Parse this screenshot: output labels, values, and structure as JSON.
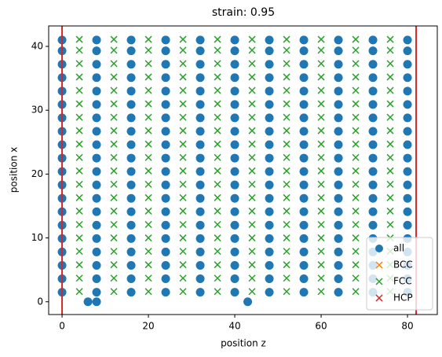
{
  "chart_data": {
    "type": "scatter",
    "title": "strain: 0.95",
    "xlabel": "position z",
    "ylabel": "position x",
    "xlim": [
      -3.1,
      86.9
    ],
    "ylim": [
      -2,
      43.2
    ],
    "xticks": [
      0,
      20,
      40,
      60,
      80
    ],
    "yticks": [
      0,
      10,
      20,
      30,
      40
    ],
    "vlines": [
      0,
      82
    ],
    "vline_color": "#d62728",
    "legend": "lower right",
    "series": [
      {
        "name": "all",
        "color": "#1f77b4",
        "marker": "o",
        "x": [
          0,
          8,
          16,
          24,
          32,
          40,
          48,
          56,
          64,
          72,
          80,
          0,
          8,
          16,
          24,
          32,
          40,
          48,
          56,
          64,
          72,
          80,
          0,
          8,
          16,
          24,
          32,
          40,
          48,
          56,
          64,
          72,
          80,
          0,
          8,
          16,
          24,
          32,
          40,
          48,
          56,
          64,
          72,
          80,
          0,
          8,
          16,
          24,
          32,
          40,
          48,
          56,
          64,
          72,
          80,
          0,
          8,
          16,
          24,
          32,
          40,
          48,
          56,
          64,
          72,
          80,
          0,
          8,
          16,
          24,
          32,
          40,
          48,
          56,
          64,
          72,
          80,
          0,
          8,
          16,
          24,
          32,
          40,
          48,
          56,
          64,
          72,
          80,
          0,
          8,
          16,
          24,
          32,
          40,
          48,
          56,
          64,
          72,
          80,
          0,
          8,
          16,
          24,
          32,
          40,
          48,
          56,
          64,
          72,
          80,
          0,
          8,
          16,
          24,
          32,
          40,
          48,
          56,
          64,
          72,
          80,
          0,
          8,
          16,
          24,
          32,
          40,
          48,
          56,
          64,
          72,
          80,
          0,
          8,
          16,
          24,
          32,
          40,
          48,
          56,
          64,
          72,
          80,
          0,
          8,
          16,
          24,
          32,
          40,
          48,
          56,
          64,
          72,
          80,
          0,
          8,
          16,
          24,
          32,
          40,
          48,
          56,
          64,
          72,
          80,
          0,
          8,
          16,
          24,
          32,
          40,
          48,
          56,
          64,
          72,
          80,
          0,
          8,
          16,
          24,
          32,
          40,
          48,
          56,
          64,
          72,
          80,
          0,
          8,
          16,
          24,
          32,
          40,
          48,
          56,
          64,
          72,
          80,
          0,
          8,
          16,
          24,
          32,
          40,
          48,
          56,
          64,
          72,
          80,
          0,
          8,
          16,
          24,
          32,
          40,
          48,
          56,
          64,
          72,
          80,
          6,
          8,
          43
        ],
        "y": [
          1.5,
          1.5,
          1.5,
          1.5,
          1.5,
          1.5,
          1.5,
          1.5,
          1.5,
          1.5,
          1.5,
          3.6,
          3.6,
          3.6,
          3.6,
          3.6,
          3.6,
          3.6,
          3.6,
          3.6,
          3.6,
          3.6,
          5.7,
          5.7,
          5.7,
          5.7,
          5.7,
          5.7,
          5.7,
          5.7,
          5.7,
          5.7,
          5.7,
          7.8,
          7.8,
          7.8,
          7.8,
          7.8,
          7.8,
          7.8,
          7.8,
          7.8,
          7.8,
          7.8,
          9.9,
          9.9,
          9.9,
          9.9,
          9.9,
          9.9,
          9.9,
          9.9,
          9.9,
          9.9,
          9.9,
          12,
          12,
          12,
          12,
          12,
          12,
          12,
          12,
          12,
          12,
          12,
          14.1,
          14.1,
          14.1,
          14.1,
          14.1,
          14.1,
          14.1,
          14.1,
          14.1,
          14.1,
          14.1,
          16.2,
          16.2,
          16.2,
          16.2,
          16.2,
          16.2,
          16.2,
          16.2,
          16.2,
          16.2,
          16.2,
          18.3,
          18.3,
          18.3,
          18.3,
          18.3,
          18.3,
          18.3,
          18.3,
          18.3,
          18.3,
          18.3,
          20.4,
          20.4,
          20.4,
          20.4,
          20.4,
          20.4,
          20.4,
          20.4,
          20.4,
          20.4,
          20.4,
          22.5,
          22.5,
          22.5,
          22.5,
          22.5,
          22.5,
          22.5,
          22.5,
          22.5,
          22.5,
          22.5,
          24.6,
          24.6,
          24.6,
          24.6,
          24.6,
          24.6,
          24.6,
          24.6,
          24.6,
          24.6,
          24.6,
          26.7,
          26.7,
          26.7,
          26.7,
          26.7,
          26.7,
          26.7,
          26.7,
          26.7,
          26.7,
          26.7,
          28.8,
          28.8,
          28.8,
          28.8,
          28.8,
          28.8,
          28.8,
          28.8,
          28.8,
          28.8,
          28.8,
          30.9,
          30.9,
          30.9,
          30.9,
          30.9,
          30.9,
          30.9,
          30.9,
          30.9,
          30.9,
          30.9,
          33,
          33,
          33,
          33,
          33,
          33,
          33,
          33,
          33,
          33,
          33,
          35.1,
          35.1,
          35.1,
          35.1,
          35.1,
          35.1,
          35.1,
          35.1,
          35.1,
          35.1,
          35.1,
          37.2,
          37.2,
          37.2,
          37.2,
          37.2,
          37.2,
          37.2,
          37.2,
          37.2,
          37.2,
          37.2,
          39.3,
          39.3,
          39.3,
          39.3,
          39.3,
          39.3,
          39.3,
          39.3,
          39.3,
          39.3,
          39.3,
          41,
          41,
          41,
          41,
          41,
          41,
          41,
          41,
          41,
          41,
          41,
          0,
          0,
          0
        ]
      },
      {
        "name": "BCC",
        "color": "#ff7f0e",
        "marker": "x",
        "x": [],
        "y": []
      },
      {
        "name": "FCC",
        "color": "#2ca02c",
        "marker": "x",
        "x": [
          4,
          12,
          20,
          28,
          36,
          44,
          52,
          60,
          68,
          76,
          4,
          12,
          20,
          28,
          36,
          44,
          52,
          60,
          68,
          76,
          4,
          12,
          20,
          28,
          36,
          44,
          52,
          60,
          68,
          76,
          4,
          12,
          20,
          28,
          36,
          44,
          52,
          60,
          68,
          76,
          4,
          12,
          20,
          28,
          36,
          44,
          52,
          60,
          68,
          76,
          4,
          12,
          20,
          28,
          36,
          44,
          52,
          60,
          68,
          76,
          4,
          12,
          20,
          28,
          36,
          44,
          52,
          60,
          68,
          76,
          4,
          12,
          20,
          28,
          36,
          44,
          52,
          60,
          68,
          76,
          4,
          12,
          20,
          28,
          36,
          44,
          52,
          60,
          68,
          76,
          4,
          12,
          20,
          28,
          36,
          44,
          52,
          60,
          68,
          76,
          4,
          12,
          20,
          28,
          36,
          44,
          52,
          60,
          68,
          76,
          4,
          12,
          20,
          28,
          36,
          44,
          52,
          60,
          68,
          76,
          4,
          12,
          20,
          28,
          36,
          44,
          52,
          60,
          68,
          76,
          4,
          12,
          20,
          28,
          36,
          44,
          52,
          60,
          68,
          76,
          4,
          12,
          20,
          28,
          36,
          44,
          52,
          60,
          68,
          76,
          4,
          12,
          20,
          28,
          36,
          44,
          52,
          60,
          68,
          76,
          4,
          12,
          20,
          28,
          36,
          44,
          52,
          60,
          68,
          76,
          4,
          12,
          20,
          28,
          36,
          44,
          52,
          60,
          68,
          76,
          4,
          12,
          20,
          28,
          36,
          44,
          52,
          60,
          68,
          76,
          4,
          12,
          20,
          28,
          36,
          44,
          52,
          60,
          68,
          76
        ],
        "y": [
          1.6,
          1.6,
          1.6,
          1.6,
          1.6,
          1.6,
          1.6,
          1.6,
          1.6,
          1.6,
          3.7,
          3.7,
          3.7,
          3.7,
          3.7,
          3.7,
          3.7,
          3.7,
          3.7,
          3.7,
          5.8,
          5.8,
          5.8,
          5.8,
          5.8,
          5.8,
          5.8,
          5.8,
          5.8,
          5.8,
          7.9,
          7.9,
          7.9,
          7.9,
          7.9,
          7.9,
          7.9,
          7.9,
          7.9,
          7.9,
          10,
          10,
          10,
          10,
          10,
          10,
          10,
          10,
          10,
          10,
          12.1,
          12.1,
          12.1,
          12.1,
          12.1,
          12.1,
          12.1,
          12.1,
          12.1,
          12.1,
          14.2,
          14.2,
          14.2,
          14.2,
          14.2,
          14.2,
          14.2,
          14.2,
          14.2,
          14.2,
          16.3,
          16.3,
          16.3,
          16.3,
          16.3,
          16.3,
          16.3,
          16.3,
          16.3,
          16.3,
          18.4,
          18.4,
          18.4,
          18.4,
          18.4,
          18.4,
          18.4,
          18.4,
          18.4,
          18.4,
          20.5,
          20.5,
          20.5,
          20.5,
          20.5,
          20.5,
          20.5,
          20.5,
          20.5,
          20.5,
          22.6,
          22.6,
          22.6,
          22.6,
          22.6,
          22.6,
          22.6,
          22.6,
          22.6,
          22.6,
          24.7,
          24.7,
          24.7,
          24.7,
          24.7,
          24.7,
          24.7,
          24.7,
          24.7,
          24.7,
          26.8,
          26.8,
          26.8,
          26.8,
          26.8,
          26.8,
          26.8,
          26.8,
          26.8,
          26.8,
          28.9,
          28.9,
          28.9,
          28.9,
          28.9,
          28.9,
          28.9,
          28.9,
          28.9,
          28.9,
          31,
          31,
          31,
          31,
          31,
          31,
          31,
          31,
          31,
          31,
          33.1,
          33.1,
          33.1,
          33.1,
          33.1,
          33.1,
          33.1,
          33.1,
          33.1,
          33.1,
          35.2,
          35.2,
          35.2,
          35.2,
          35.2,
          35.2,
          35.2,
          35.2,
          35.2,
          35.2,
          37.3,
          37.3,
          37.3,
          37.3,
          37.3,
          37.3,
          37.3,
          37.3,
          37.3,
          37.3,
          39.4,
          39.4,
          39.4,
          39.4,
          39.4,
          39.4,
          39.4,
          39.4,
          39.4,
          39.4,
          41.1,
          41.1,
          41.1,
          41.1,
          41.1,
          41.1,
          41.1,
          41.1,
          41.1,
          41.1
        ]
      },
      {
        "name": "HCP",
        "color": "#d62728",
        "marker": "x",
        "x": [],
        "y": []
      }
    ]
  }
}
